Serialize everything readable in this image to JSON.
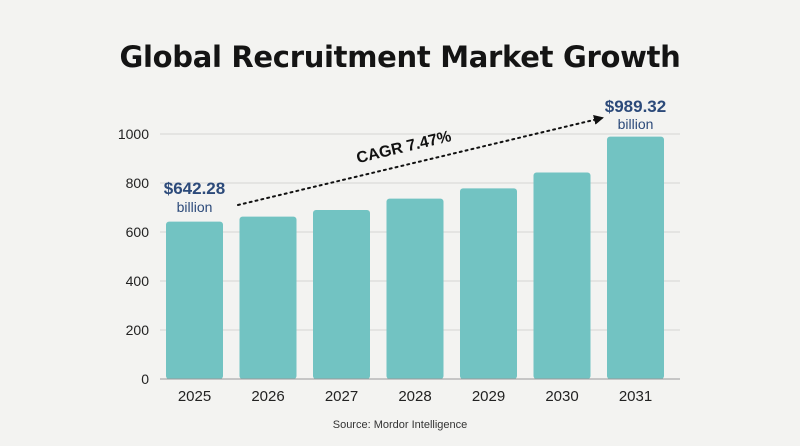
{
  "chart_data": {
    "type": "bar",
    "title": "Global Recruitment Market Growth",
    "categories": [
      "2025",
      "2026",
      "2027",
      "2028",
      "2029",
      "2030",
      "2031"
    ],
    "values": [
      642.28,
      663,
      690,
      736,
      778,
      843,
      989.32
    ],
    "ylim": [
      0,
      1000
    ],
    "yticks": [
      "0",
      "200",
      "400",
      "600",
      "800",
      "1000"
    ],
    "grid": true,
    "bar_color": "#72c3c2",
    "label_color": "#2c4a7a",
    "annotations": {
      "start_value": "$642.28",
      "start_unit": "billion",
      "end_value": "$989.32",
      "end_unit": "billion",
      "cagr": "CAGR 7.47%"
    }
  },
  "source": "Source: Mordor Intelligence"
}
